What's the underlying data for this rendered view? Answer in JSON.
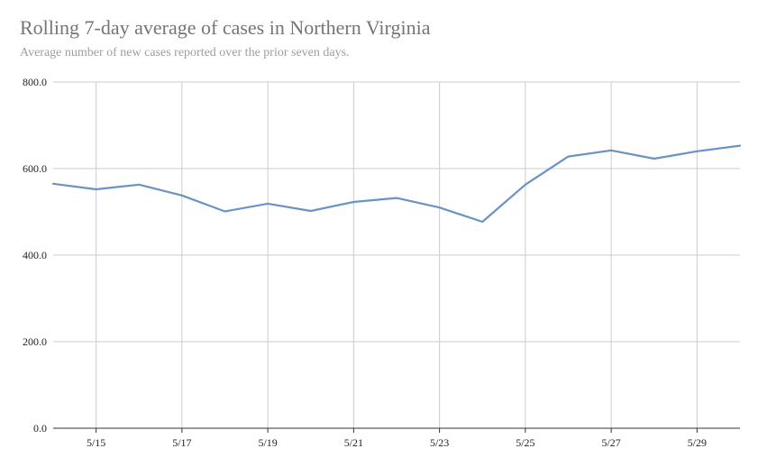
{
  "chart_data": {
    "type": "line",
    "title": "Rolling 7-day average of cases in Northern Virginia",
    "subtitle": "Average number of new cases reported over the prior seven days.",
    "xlabel": "",
    "ylabel": "",
    "ylim": [
      0,
      800
    ],
    "yticks": [
      "0.0",
      "200.0",
      "400.0",
      "600.0",
      "800.0"
    ],
    "x": [
      "5/14",
      "5/15",
      "5/16",
      "5/17",
      "5/18",
      "5/19",
      "5/20",
      "5/21",
      "5/22",
      "5/23",
      "5/24",
      "5/25",
      "5/26",
      "5/27",
      "5/28",
      "5/29",
      "5/30"
    ],
    "xtick_labels": [
      "5/15",
      "5/17",
      "5/19",
      "5/21",
      "5/23",
      "5/25",
      "5/27",
      "5/29"
    ],
    "series": [
      {
        "values": [
          565,
          552,
          563,
          538,
          501,
          519,
          502,
          523,
          532,
          510,
          477,
          563,
          628,
          642,
          623,
          640,
          653
        ]
      }
    ],
    "grid": true,
    "legend": "none",
    "colors": {
      "line": "#6a93c4",
      "grid": "#cccccc",
      "axis": "#333333"
    }
  }
}
